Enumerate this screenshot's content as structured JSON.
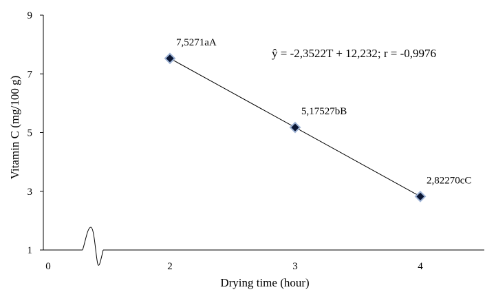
{
  "chart_data": {
    "type": "scatter",
    "xlabel": "Drying time (hour)",
    "ylabel": "Vitamin C (mg/100 g)",
    "x_ticks": [
      "0",
      "2",
      "3",
      "4"
    ],
    "y_ticks": [
      "1",
      "3",
      "5",
      "7",
      "9"
    ],
    "ylim": [
      1,
      9
    ],
    "axis_break": true,
    "grid": false,
    "series": [
      {
        "x": [
          2,
          3,
          4
        ],
        "y": [
          7.5271,
          5.17527,
          2.8227
        ],
        "labels": [
          "7,5271aA",
          "5,17527bB",
          "2,82270cC"
        ],
        "marker": "diamond",
        "marker_color": "#0b1633",
        "marker_edge": "#9fb4d6"
      }
    ],
    "trendline": {
      "slope": -2.3522,
      "intercept": 12.232,
      "equation": "ŷ = -2,3522T + 12,232; r = -0,9976"
    }
  }
}
